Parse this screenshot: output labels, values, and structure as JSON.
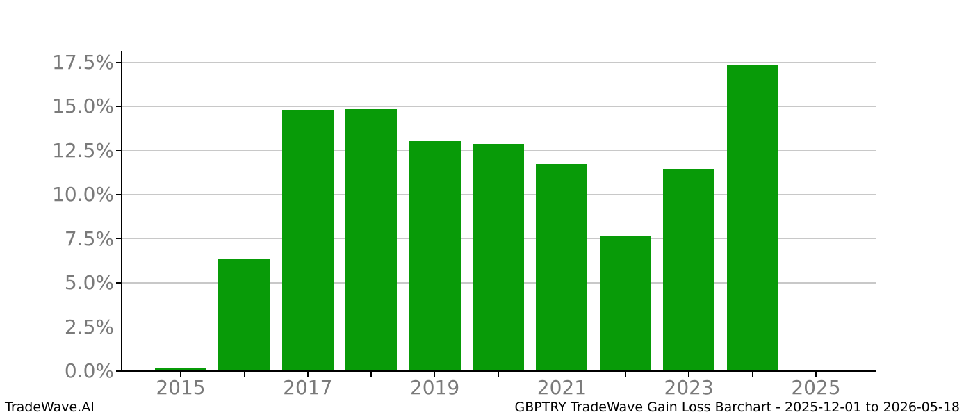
{
  "chart_data": {
    "type": "bar",
    "title": "",
    "xlabel": "",
    "ylabel": "",
    "categories": [
      2015,
      2016,
      2017,
      2018,
      2019,
      2020,
      2021,
      2022,
      2023,
      2024,
      2025
    ],
    "values": [
      0.2,
      6.33,
      14.8,
      14.85,
      13.05,
      12.88,
      11.73,
      7.68,
      11.47,
      17.32,
      0
    ],
    "xtick_labels": [
      "2015",
      "2017",
      "2019",
      "2021",
      "2023",
      "2025"
    ],
    "xtick_label_years": [
      2015,
      2017,
      2019,
      2021,
      2023,
      2025
    ],
    "ytick_values": [
      0,
      2.5,
      5,
      7.5,
      10,
      12.5,
      15,
      17.5
    ],
    "ytick_labels": [
      "0.0%",
      "2.5%",
      "5.0%",
      "7.5%",
      "10.0%",
      "12.5%",
      "15.0%",
      "17.5%"
    ],
    "ylim": [
      0,
      18.15
    ],
    "grid": "horizontal",
    "legend": "none",
    "colors": {
      "bar": "#089b08",
      "grid": "#c8c8c8",
      "axis": "#000000",
      "tick_label": "#7a7a7a",
      "background": "#ffffff",
      "footer_text": "#000000"
    }
  },
  "footer": {
    "left": "TradeWave.AI",
    "right": "GBPTRY TradeWave Gain Loss Barchart - 2025-12-01 to 2026-05-18"
  }
}
